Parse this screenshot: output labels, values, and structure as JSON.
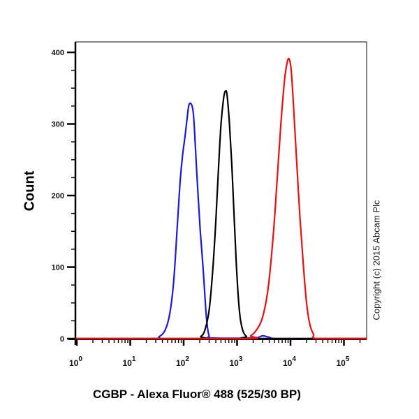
{
  "chart_data": {
    "type": "line",
    "title": "",
    "xlabel": "CGBP - Alexa Fluor® 488 (525/30 BP)",
    "ylabel": "Count",
    "xscale": "log",
    "xlim": [
      1,
      250000
    ],
    "ylim": [
      0,
      420
    ],
    "x_ticks": [
      1,
      10,
      100,
      1000,
      10000,
      100000
    ],
    "x_tick_labels": [
      "10^0",
      "10^1",
      "10^2",
      "10^3",
      "10^4",
      "10^5"
    ],
    "y_ticks": [
      0,
      100,
      200,
      300,
      400
    ],
    "y_tick_labels": [
      "0",
      "100",
      "200",
      "300",
      "400"
    ],
    "grid": false,
    "legend": null,
    "annotations": [
      "Copyright (c) 2015 Abcam Plc"
    ],
    "series": [
      {
        "name": "blue histogram",
        "color": "#1a1adc",
        "peak_x": 138,
        "peak_count": 328,
        "points": [
          [
            25,
            0
          ],
          [
            35,
            3
          ],
          [
            45,
            12
          ],
          [
            55,
            35
          ],
          [
            65,
            80
          ],
          [
            75,
            150
          ],
          [
            85,
            215
          ],
          [
            95,
            255
          ],
          [
            105,
            280
          ],
          [
            115,
            305
          ],
          [
            125,
            326
          ],
          [
            138,
            328
          ],
          [
            150,
            318
          ],
          [
            160,
            290
          ],
          [
            175,
            235
          ],
          [
            190,
            190
          ],
          [
            205,
            150
          ],
          [
            220,
            120
          ],
          [
            240,
            80
          ],
          [
            260,
            40
          ],
          [
            280,
            15
          ],
          [
            300,
            4
          ],
          [
            330,
            1
          ],
          [
            2000,
            1
          ],
          [
            3000,
            4
          ],
          [
            4000,
            2
          ],
          [
            7000,
            0
          ]
        ]
      },
      {
        "name": "black histogram",
        "color": "#000000",
        "peak_x": 605,
        "peak_count": 346,
        "points": [
          [
            170,
            0
          ],
          [
            210,
            3
          ],
          [
            250,
            12
          ],
          [
            300,
            40
          ],
          [
            350,
            95
          ],
          [
            400,
            165
          ],
          [
            450,
            240
          ],
          [
            500,
            300
          ],
          [
            560,
            336
          ],
          [
            605,
            346
          ],
          [
            650,
            340
          ],
          [
            720,
            300
          ],
          [
            800,
            240
          ],
          [
            880,
            170
          ],
          [
            960,
            110
          ],
          [
            1050,
            60
          ],
          [
            1150,
            28
          ],
          [
            1300,
            10
          ],
          [
            1500,
            3
          ],
          [
            1800,
            0
          ]
        ]
      },
      {
        "name": "red histogram",
        "color": "#e81010",
        "peak_x": 9400,
        "peak_count": 391,
        "points": [
          [
            1300,
            0
          ],
          [
            1800,
            4
          ],
          [
            2300,
            12
          ],
          [
            3000,
            30
          ],
          [
            3800,
            70
          ],
          [
            4700,
            140
          ],
          [
            5600,
            220
          ],
          [
            6600,
            300
          ],
          [
            7700,
            360
          ],
          [
            8600,
            385
          ],
          [
            9400,
            391
          ],
          [
            10300,
            375
          ],
          [
            11500,
            320
          ],
          [
            13000,
            250
          ],
          [
            15000,
            170
          ],
          [
            17500,
            100
          ],
          [
            20000,
            50
          ],
          [
            23000,
            20
          ],
          [
            27000,
            6
          ],
          [
            32000,
            0
          ]
        ]
      }
    ]
  },
  "axis_labels": {
    "y": "Count",
    "x": "CGBP - Alexa Fluor® 488 (525/30 BP)"
  },
  "copyright": "Copyright (c) 2015 Abcam Plc"
}
